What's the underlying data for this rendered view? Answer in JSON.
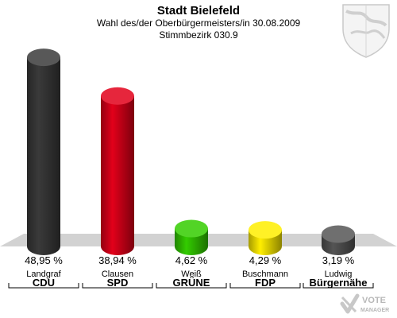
{
  "header": {
    "title": "Stadt Bielefeld",
    "subtitle_line1": "Wahl des/der Oberbürgermeisters/in 30.08.2009",
    "subtitle_line2": "Stimmbezirk 030.9"
  },
  "colors": {
    "floor": "#d2d2d2",
    "CDU": "#3a3a3a",
    "SPD": "#e2001a",
    "GRUENE": "#33cc00",
    "FDP": "#ffee00",
    "Buergernaehe": "#555555"
  },
  "chart_data": {
    "type": "bar",
    "title": "Stadt Bielefeld",
    "categories": [
      "Landgraf",
      "Clausen",
      "Weiß",
      "Buschmann",
      "Ludwig"
    ],
    "parties": [
      "CDU",
      "SPD",
      "GRÜNE",
      "FDP",
      "Bürgernähe"
    ],
    "values": [
      48.95,
      38.94,
      4.62,
      4.29,
      3.19
    ],
    "value_labels": [
      "48,95 %",
      "38,94 %",
      "4,62 %",
      "4,29 %",
      "3,19 %"
    ],
    "color_keys": [
      "CDU",
      "SPD",
      "GRUENE",
      "FDP",
      "Buergernaehe"
    ],
    "ylim": [
      0,
      50
    ],
    "grid": false
  },
  "logo": {
    "brand_top": "VOTE",
    "brand_bottom": "MANAGER",
    "crest_icon": "coat-of-arms-icon"
  }
}
